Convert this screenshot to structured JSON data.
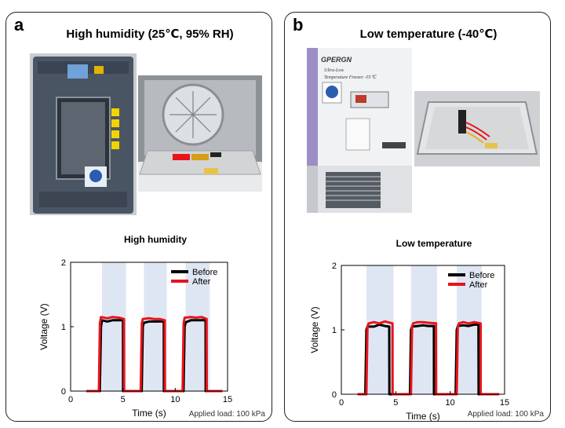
{
  "panels": [
    {
      "letter": "a",
      "title": "High humidity (25℃, 95% RH)",
      "chart_title": "High humidity",
      "footnote": "Applied load: 100 kPa"
    },
    {
      "letter": "b",
      "title": "Low temperature (-40℃)",
      "chart_title": "Low temperature",
      "footnote": "Applied load: 100 kPa",
      "photo_text": {
        "brand": "GPERGN",
        "label_line1": "Ultra-Low",
        "label_line2": "Temperature Freezer -55℃"
      }
    }
  ],
  "chart_data": [
    {
      "type": "line",
      "title": "High humidity",
      "xlabel": "Time (s)",
      "ylabel": "Voltage (V)",
      "xlim": [
        0,
        15
      ],
      "ylim": [
        0,
        2
      ],
      "xticks": [
        0,
        5,
        10,
        15
      ],
      "yticks": [
        0,
        1,
        2
      ],
      "shaded_intervals": [
        [
          3,
          5.3
        ],
        [
          7,
          9.2
        ],
        [
          11,
          13.3
        ]
      ],
      "legend_position": "top-right",
      "series": [
        {
          "name": "Before",
          "color": "#000000",
          "x": [
            1.5,
            2.8,
            2.9,
            3.0,
            3.5,
            4.0,
            4.6,
            5.0,
            5.01,
            6.0,
            6.8,
            6.9,
            7.0,
            7.5,
            8.0,
            8.5,
            8.9,
            8.91,
            10.0,
            10.8,
            10.9,
            11.0,
            11.5,
            12.0,
            12.5,
            12.9,
            12.91,
            14.5
          ],
          "y": [
            0,
            0,
            1.0,
            1.1,
            1.08,
            1.1,
            1.1,
            1.1,
            0,
            0,
            0,
            1.0,
            1.06,
            1.08,
            1.08,
            1.08,
            1.08,
            0,
            0,
            0,
            1.0,
            1.07,
            1.1,
            1.1,
            1.1,
            1.1,
            0,
            0
          ]
        },
        {
          "name": "After",
          "color": "#e8141a",
          "x": [
            1.5,
            2.7,
            2.8,
            2.9,
            3.5,
            4.0,
            4.6,
            5.1,
            5.11,
            6.0,
            6.7,
            6.8,
            6.9,
            7.5,
            8.0,
            8.5,
            9.0,
            9.01,
            10.0,
            10.7,
            10.8,
            10.9,
            11.5,
            12.0,
            12.5,
            13.0,
            13.01,
            14.5
          ],
          "y": [
            0,
            0,
            1.05,
            1.15,
            1.13,
            1.15,
            1.14,
            1.12,
            0,
            0,
            0,
            1.05,
            1.12,
            1.13,
            1.12,
            1.12,
            1.1,
            0,
            0,
            0,
            1.05,
            1.14,
            1.15,
            1.14,
            1.15,
            1.12,
            0,
            0
          ]
        }
      ]
    },
    {
      "type": "line",
      "title": "Low temperature",
      "xlabel": "Time (s)",
      "ylabel": "Voltage (V)",
      "xlim": [
        0,
        15
      ],
      "ylim": [
        0,
        2
      ],
      "xticks": [
        0,
        5,
        10,
        15
      ],
      "yticks": [
        0,
        1,
        2
      ],
      "shaded_intervals": [
        [
          2.3,
          4.8
        ],
        [
          6.4,
          8.8
        ],
        [
          10.6,
          12.9
        ]
      ],
      "legend_position": "top-right",
      "series": [
        {
          "name": "Before",
          "color": "#000000",
          "x": [
            1.5,
            2.2,
            2.3,
            2.4,
            3.0,
            3.5,
            4.0,
            4.4,
            4.41,
            5.5,
            6.3,
            6.4,
            6.5,
            7.0,
            7.5,
            8.0,
            8.5,
            8.51,
            10.0,
            10.5,
            10.6,
            10.7,
            11.2,
            11.7,
            12.2,
            12.6,
            12.61,
            14.5
          ],
          "y": [
            0,
            0,
            1.0,
            1.05,
            1.05,
            1.08,
            1.06,
            1.05,
            0,
            0,
            0,
            1.0,
            1.05,
            1.06,
            1.07,
            1.06,
            1.06,
            0,
            0,
            0,
            1.0,
            1.06,
            1.07,
            1.06,
            1.08,
            1.08,
            0,
            0
          ]
        },
        {
          "name": "After",
          "color": "#e8141a",
          "x": [
            1.5,
            2.3,
            2.4,
            2.5,
            3.0,
            3.5,
            4.0,
            4.7,
            4.71,
            5.5,
            6.4,
            6.5,
            6.6,
            7.0,
            7.5,
            8.0,
            8.7,
            8.71,
            10.0,
            10.6,
            10.7,
            10.8,
            11.2,
            11.7,
            12.2,
            12.8,
            12.81,
            14.5
          ],
          "y": [
            0,
            0,
            1.05,
            1.1,
            1.12,
            1.1,
            1.13,
            1.1,
            0,
            0,
            0,
            1.05,
            1.1,
            1.12,
            1.12,
            1.11,
            1.1,
            0,
            0,
            0,
            1.05,
            1.1,
            1.12,
            1.1,
            1.12,
            1.1,
            0,
            0
          ]
        }
      ]
    }
  ]
}
